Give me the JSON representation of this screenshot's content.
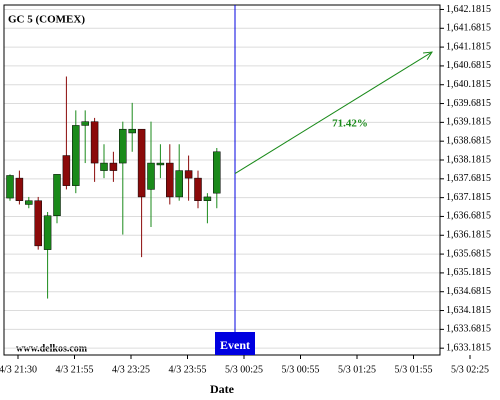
{
  "chart_data": {
    "type": "candlestick",
    "title": "GC 5 (COMEX)",
    "x_label": "Date",
    "watermark": "www.delkos.com",
    "event_label": "Event",
    "ylim": [
      1633.0,
      1642.3
    ],
    "yticks": [
      {
        "value": 1633.1815,
        "label": "1,633.1815"
      },
      {
        "value": 1633.6815,
        "label": "1,633.6815"
      },
      {
        "value": 1634.1815,
        "label": "1,634.1815"
      },
      {
        "value": 1634.6815,
        "label": "1,634.6815"
      },
      {
        "value": 1635.1815,
        "label": "1,635.1815"
      },
      {
        "value": 1635.6815,
        "label": "1,635.6815"
      },
      {
        "value": 1636.1815,
        "label": "1,636.1815"
      },
      {
        "value": 1636.6815,
        "label": "1,636.6815"
      },
      {
        "value": 1637.1815,
        "label": "1,637.1815"
      },
      {
        "value": 1637.6815,
        "label": "1,637.6815"
      },
      {
        "value": 1638.1815,
        "label": "1,638.1815"
      },
      {
        "value": 1638.6815,
        "label": "1,638.6815"
      },
      {
        "value": 1639.1815,
        "label": "1,639.1815"
      },
      {
        "value": 1639.6815,
        "label": "1,639.6815"
      },
      {
        "value": 1640.1815,
        "label": "1,640.1815"
      },
      {
        "value": 1640.6815,
        "label": "1,640.6815"
      },
      {
        "value": 1641.1815,
        "label": "1,641.1815"
      },
      {
        "value": 1641.6815,
        "label": "1,641.6815"
      },
      {
        "value": 1642.1815,
        "label": "1,642.1815"
      }
    ],
    "xticks": [
      "4/3 21:30",
      "4/3 21:55",
      "4/3 23:25",
      "4/3 23:55",
      "5/3 00:25",
      "5/3 00:55",
      "5/3 01:25",
      "5/3 01:55",
      "5/3 02:25"
    ],
    "up_color": "#1a8a1a",
    "down_color": "#8b0a0a",
    "open": [
      1637.17,
      1637.7,
      1637.0,
      1637.1,
      1635.8,
      1636.7,
      1638.3,
      1637.5,
      1639.1,
      1639.2,
      1637.9,
      1638.1,
      1638.1,
      1638.9,
      1639.0,
      1637.4,
      1638.05,
      1638.1,
      1637.2,
      1637.9,
      1637.7,
      1637.1,
      1637.3
    ],
    "high": [
      1637.8,
      1637.9,
      1637.2,
      1637.2,
      1636.8,
      1637.8,
      1640.4,
      1639.5,
      1639.5,
      1639.3,
      1638.6,
      1638.4,
      1639.2,
      1639.7,
      1639.0,
      1639.2,
      1638.6,
      1638.6,
      1638.6,
      1638.3,
      1637.9,
      1637.3,
      1638.5
    ],
    "low": [
      1637.1,
      1637.0,
      1636.9,
      1635.8,
      1634.5,
      1636.5,
      1637.4,
      1637.3,
      1638.1,
      1637.6,
      1637.7,
      1637.6,
      1636.2,
      1638.4,
      1635.6,
      1636.4,
      1637.7,
      1637.0,
      1637.1,
      1637.1,
      1636.9,
      1636.5,
      1636.9
    ],
    "close": [
      1637.77,
      1637.1,
      1637.1,
      1635.9,
      1636.7,
      1637.8,
      1637.5,
      1639.1,
      1639.2,
      1638.1,
      1638.1,
      1637.9,
      1639.0,
      1639.0,
      1637.2,
      1638.1,
      1638.1,
      1637.2,
      1637.9,
      1637.7,
      1637.1,
      1637.2,
      1638.4
    ],
    "projection": {
      "start": 1637.82,
      "end": 1641.05,
      "label": "71.42%",
      "color": "#1a8a1a"
    },
    "event_color": "#0000e0"
  }
}
